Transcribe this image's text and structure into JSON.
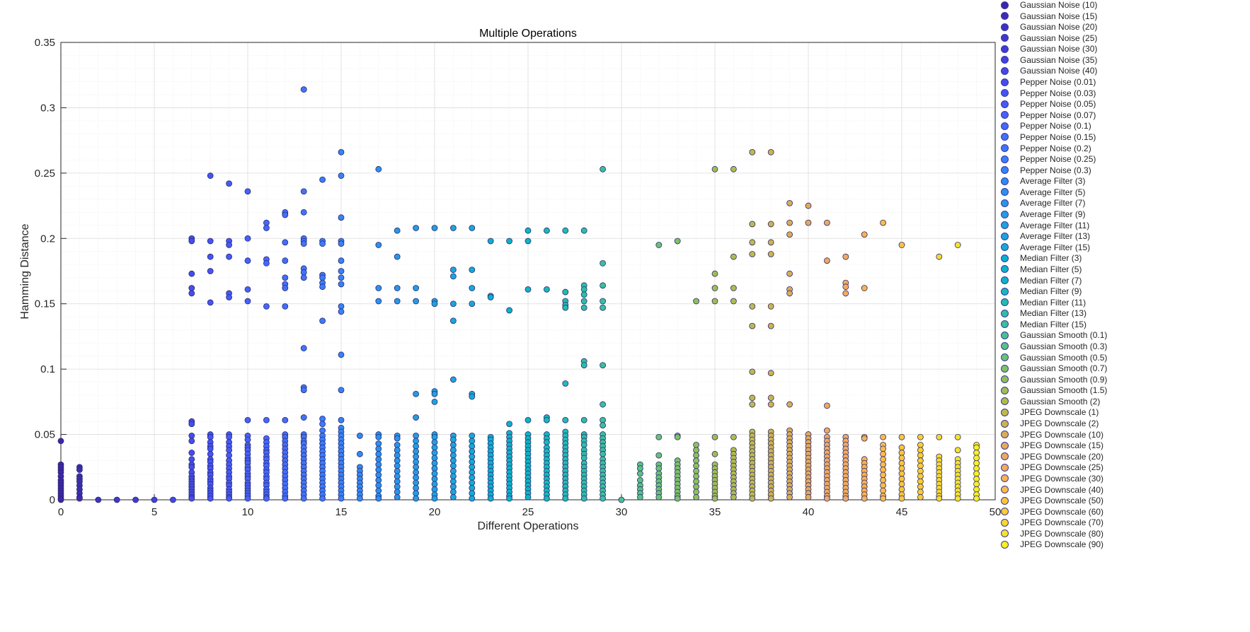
{
  "chart_data": {
    "type": "scatter",
    "title": "Multiple Operations",
    "xlabel": "Different Operations",
    "ylabel": "Hamming Distance",
    "xlim": [
      0,
      50
    ],
    "ylim": [
      0,
      0.35
    ],
    "xticks": [
      "0",
      "5",
      "10",
      "15",
      "20",
      "25",
      "30",
      "35",
      "40",
      "45",
      "50"
    ],
    "yticks": [
      "0",
      "0.05",
      "0.1",
      "0.15",
      "0.2",
      "0.25",
      "0.3",
      "0.35"
    ],
    "grid": "on",
    "legend_placement": "outside-right",
    "x_values": [
      0,
      1,
      2,
      3,
      4,
      5,
      6,
      7,
      8,
      9,
      10,
      11,
      12,
      13,
      14,
      15,
      16,
      17,
      18,
      19,
      20,
      21,
      22,
      23,
      24,
      25,
      26,
      27,
      28,
      29,
      30,
      31,
      32,
      33,
      34,
      35,
      36,
      37,
      38,
      39,
      40,
      41,
      42,
      43,
      44,
      45,
      46,
      47,
      48,
      49
    ],
    "series": [
      {
        "name": "Gaussian Noise (10)",
        "color": "#3e26a8"
      },
      {
        "name": "Gaussian Noise (15)",
        "color": "#3f2bb5"
      },
      {
        "name": "Gaussian Noise (20)",
        "color": "#4030c2"
      },
      {
        "name": "Gaussian Noise (25)",
        "color": "#4136cf"
      },
      {
        "name": "Gaussian Noise (30)",
        "color": "#423bd9"
      },
      {
        "name": "Gaussian Noise (35)",
        "color": "#4341e2"
      },
      {
        "name": "Gaussian Noise (40)",
        "color": "#4447ea"
      },
      {
        "name": "Pepper Noise (0.01)",
        "color": "#454df0"
      },
      {
        "name": "Pepper Noise (0.03)",
        "color": "#4554f5"
      },
      {
        "name": "Pepper Noise (0.05)",
        "color": "#465af9"
      },
      {
        "name": "Pepper Noise (0.07)",
        "color": "#4661fb"
      },
      {
        "name": "Pepper Noise (0.1)",
        "color": "#4567fd"
      },
      {
        "name": "Pepper Noise (0.15)",
        "color": "#436efe"
      },
      {
        "name": "Pepper Noise (0.2)",
        "color": "#3f75fe"
      },
      {
        "name": "Pepper Noise (0.25)",
        "color": "#3b7cfc"
      },
      {
        "name": "Pepper Noise (0.3)",
        "color": "#3583f8"
      },
      {
        "name": "Average Filter (3)",
        "color": "#2f8af3"
      },
      {
        "name": "Average Filter (5)",
        "color": "#2b90ee"
      },
      {
        "name": "Average Filter (7)",
        "color": "#2896e8"
      },
      {
        "name": "Average Filter (9)",
        "color": "#259be3"
      },
      {
        "name": "Average Filter (11)",
        "color": "#21a0df"
      },
      {
        "name": "Average Filter (13)",
        "color": "#1ca5db"
      },
      {
        "name": "Average Filter (15)",
        "color": "#16a9d6"
      },
      {
        "name": "Median Filter (3)",
        "color": "#0faed0"
      },
      {
        "name": "Median Filter (5)",
        "color": "#0ab2ca"
      },
      {
        "name": "Median Filter (7)",
        "color": "#0cb5c3"
      },
      {
        "name": "Median Filter (9)",
        "color": "#17b8bb"
      },
      {
        "name": "Median Filter (11)",
        "color": "#22bbb2"
      },
      {
        "name": "Median Filter (13)",
        "color": "#2ebda8"
      },
      {
        "name": "Median Filter (15)",
        "color": "#3abf9d"
      },
      {
        "name": "Gaussian Smooth (0.1)",
        "color": "#48c190"
      },
      {
        "name": "Gaussian Smooth (0.3)",
        "color": "#58c282"
      },
      {
        "name": "Gaussian Smooth (0.5)",
        "color": "#6ac274"
      },
      {
        "name": "Gaussian Smooth (0.7)",
        "color": "#7cc167"
      },
      {
        "name": "Gaussian Smooth (0.9)",
        "color": "#8fbf5c"
      },
      {
        "name": "Gaussian Smooth (1.5)",
        "color": "#a0bd54"
      },
      {
        "name": "Gaussian Smooth (2)",
        "color": "#b0bb4e"
      },
      {
        "name": "JPEG Downscale (1)",
        "color": "#bfb94e"
      },
      {
        "name": "JPEG Downscale (2)",
        "color": "#cdb24f"
      },
      {
        "name": "JPEG Downscale (10)",
        "color": "#d9ad55"
      },
      {
        "name": "JPEG Downscale (15)",
        "color": "#e2aa5f"
      },
      {
        "name": "JPEG Downscale (20)",
        "color": "#eba962"
      },
      {
        "name": "JPEG Downscale (25)",
        "color": "#f2ab5e"
      },
      {
        "name": "JPEG Downscale (30)",
        "color": "#f8b253"
      },
      {
        "name": "JPEG Downscale (40)",
        "color": "#fbbb46"
      },
      {
        "name": "JPEG Downscale (50)",
        "color": "#fbc43a"
      },
      {
        "name": "JPEG Downscale (60)",
        "color": "#f9ce33"
      },
      {
        "name": "JPEG Downscale (70)",
        "color": "#f6d82f"
      },
      {
        "name": "JPEG Downscale (80)",
        "color": "#f5e32b"
      },
      {
        "name": "JPEG Downscale (90)",
        "color": "#f8f020"
      }
    ],
    "points_by_x": {
      "0": [
        0.045,
        0.027,
        0.025,
        0.023,
        0.021,
        0.018,
        0.015,
        0.013,
        0.011,
        0.009,
        0.007,
        0.005,
        0.003,
        0.001,
        0
      ],
      "1": [
        0.025,
        0.023,
        0.018,
        0.016,
        0.014,
        0.011,
        0.008,
        0.005,
        0.002,
        0.001
      ],
      "2": [
        0
      ],
      "3": [
        0
      ],
      "4": [
        0
      ],
      "5": [
        0
      ],
      "6": [
        0
      ],
      "7": [
        0.2,
        0.198,
        0.173,
        0.162,
        0.158,
        0.06,
        0.058,
        0.049,
        0.045,
        0.036,
        0.031,
        0.027,
        0.025,
        0.021,
        0.018,
        0.016,
        0.014,
        0.012,
        0.01,
        0.008,
        0.006,
        0.004,
        0.002,
        0.001
      ],
      "8": [
        0.248,
        0.198,
        0.186,
        0.175,
        0.151,
        0.05,
        0.048,
        0.044,
        0.041,
        0.039,
        0.035,
        0.031,
        0.029,
        0.026,
        0.024,
        0.021,
        0.019,
        0.016,
        0.014,
        0.012,
        0.009,
        0.007,
        0.005,
        0.003,
        0.001
      ],
      "9": [
        0.242,
        0.198,
        0.195,
        0.186,
        0.158,
        0.155,
        0.05,
        0.048,
        0.044,
        0.041,
        0.038,
        0.034,
        0.03,
        0.027,
        0.024,
        0.021,
        0.018,
        0.016,
        0.013,
        0.011,
        0.008,
        0.006,
        0.004,
        0.002,
        0.001
      ],
      "10": [
        0.236,
        0.2,
        0.183,
        0.161,
        0.152,
        0.061,
        0.049,
        0.046,
        0.042,
        0.04,
        0.038,
        0.035,
        0.032,
        0.03,
        0.028,
        0.025,
        0.023,
        0.02,
        0.018,
        0.016,
        0.013,
        0.011,
        0.009,
        0.007,
        0.005,
        0.003,
        0.001
      ],
      "11": [
        0.212,
        0.208,
        0.184,
        0.181,
        0.148,
        0.061,
        0.047,
        0.044,
        0.041,
        0.038,
        0.036,
        0.033,
        0.031,
        0.028,
        0.026,
        0.023,
        0.021,
        0.018,
        0.016,
        0.013,
        0.011,
        0.008,
        0.006,
        0.004,
        0.002,
        0.001
      ],
      "12": [
        0.22,
        0.218,
        0.197,
        0.183,
        0.17,
        0.165,
        0.162,
        0.148,
        0.061,
        0.05,
        0.048,
        0.045,
        0.042,
        0.039,
        0.036,
        0.033,
        0.03,
        0.027,
        0.024,
        0.021,
        0.018,
        0.015,
        0.012,
        0.009,
        0.006,
        0.003,
        0.001
      ],
      "13": [
        0.314,
        0.236,
        0.22,
        0.2,
        0.198,
        0.196,
        0.177,
        0.174,
        0.17,
        0.116,
        0.086,
        0.084,
        0.063,
        0.05,
        0.048,
        0.045,
        0.043,
        0.04,
        0.037,
        0.034,
        0.031,
        0.028,
        0.025,
        0.022,
        0.019,
        0.016,
        0.013,
        0.01,
        0.007,
        0.004,
        0.001
      ],
      "14": [
        0.245,
        0.198,
        0.196,
        0.172,
        0.17,
        0.166,
        0.163,
        0.137,
        0.062,
        0.058,
        0.053,
        0.049,
        0.046,
        0.043,
        0.04,
        0.037,
        0.034,
        0.031,
        0.028,
        0.025,
        0.022,
        0.019,
        0.016,
        0.013,
        0.01,
        0.007,
        0.004,
        0.001
      ],
      "15": [
        0.266,
        0.248,
        0.216,
        0.198,
        0.196,
        0.183,
        0.175,
        0.17,
        0.165,
        0.148,
        0.144,
        0.111,
        0.084,
        0.061,
        0.055,
        0.052,
        0.049,
        0.046,
        0.043,
        0.04,
        0.037,
        0.034,
        0.031,
        0.028,
        0.025,
        0.022,
        0.019,
        0.016,
        0.013,
        0.01,
        0.007,
        0.004,
        0.001
      ],
      "16": [
        0.049,
        0.035,
        0.025,
        0.022,
        0.019,
        0.016,
        0.013,
        0.01,
        0.007,
        0.004,
        0.001
      ],
      "17": [
        0.253,
        0.195,
        0.162,
        0.152,
        0.05,
        0.048,
        0.043,
        0.039,
        0.035,
        0.031,
        0.027,
        0.023,
        0.019,
        0.015,
        0.011,
        0.007,
        0.003,
        0.001
      ],
      "18": [
        0.206,
        0.186,
        0.162,
        0.152,
        0.049,
        0.047,
        0.042,
        0.038,
        0.034,
        0.03,
        0.026,
        0.022,
        0.018,
        0.014,
        0.01,
        0.006,
        0.002
      ],
      "19": [
        0.208,
        0.162,
        0.152,
        0.081,
        0.063,
        0.049,
        0.045,
        0.041,
        0.037,
        0.033,
        0.029,
        0.025,
        0.021,
        0.017,
        0.013,
        0.009,
        0.005,
        0.001
      ],
      "20": [
        0.208,
        0.152,
        0.15,
        0.083,
        0.081,
        0.075,
        0.05,
        0.048,
        0.044,
        0.04,
        0.036,
        0.032,
        0.028,
        0.024,
        0.02,
        0.016,
        0.012,
        0.008,
        0.004,
        0.001
      ],
      "21": [
        0.208,
        0.176,
        0.171,
        0.15,
        0.137,
        0.092,
        0.049,
        0.046,
        0.042,
        0.038,
        0.034,
        0.03,
        0.026,
        0.022,
        0.018,
        0.014,
        0.01,
        0.006,
        0.002
      ],
      "22": [
        0.208,
        0.176,
        0.162,
        0.15,
        0.081,
        0.079,
        0.049,
        0.045,
        0.041,
        0.037,
        0.033,
        0.029,
        0.025,
        0.021,
        0.017,
        0.013,
        0.009,
        0.005,
        0.001
      ],
      "23": [
        0.198,
        0.156,
        0.155,
        0.048,
        0.046,
        0.043,
        0.04,
        0.037,
        0.034,
        0.031,
        0.028,
        0.025,
        0.022,
        0.019,
        0.016,
        0.013,
        0.01,
        0.007,
        0.004,
        0.001
      ],
      "24": [
        0.198,
        0.145,
        0.058,
        0.051,
        0.048,
        0.045,
        0.042,
        0.039,
        0.036,
        0.033,
        0.03,
        0.027,
        0.024,
        0.021,
        0.018,
        0.015,
        0.012,
        0.009,
        0.006,
        0.003,
        0.001
      ],
      "25": [
        0.206,
        0.198,
        0.161,
        0.061,
        0.05,
        0.047,
        0.044,
        0.041,
        0.038,
        0.035,
        0.032,
        0.029,
        0.026,
        0.023,
        0.02,
        0.017,
        0.014,
        0.011,
        0.008,
        0.005,
        0.002
      ],
      "26": [
        0.206,
        0.161,
        0.063,
        0.061,
        0.05,
        0.047,
        0.044,
        0.04,
        0.037,
        0.034,
        0.031,
        0.028,
        0.025,
        0.022,
        0.019,
        0.016,
        0.013,
        0.01,
        0.007,
        0.004,
        0.001
      ],
      "27": [
        0.206,
        0.159,
        0.152,
        0.149,
        0.147,
        0.089,
        0.061,
        0.052,
        0.049,
        0.046,
        0.043,
        0.04,
        0.037,
        0.034,
        0.031,
        0.028,
        0.025,
        0.022,
        0.019,
        0.016,
        0.013,
        0.01,
        0.007,
        0.004,
        0.001
      ],
      "28": [
        0.206,
        0.164,
        0.161,
        0.157,
        0.152,
        0.147,
        0.106,
        0.103,
        0.061,
        0.05,
        0.048,
        0.045,
        0.042,
        0.038,
        0.035,
        0.032,
        0.028,
        0.025,
        0.022,
        0.019,
        0.016,
        0.013,
        0.01,
        0.007,
        0.004,
        0.001
      ],
      "29": [
        0.253,
        0.181,
        0.164,
        0.152,
        0.147,
        0.103,
        0.073,
        0.061,
        0.057,
        0.05,
        0.047,
        0.044,
        0.041,
        0.038,
        0.035,
        0.031,
        0.028,
        0.025,
        0.022,
        0.019,
        0.016,
        0.013,
        0.01,
        0.007,
        0.004,
        0.001
      ],
      "30": [
        0
      ],
      "31": [
        0.027,
        0.024,
        0.02,
        0.015,
        0.011,
        0.008,
        0.005,
        0.002
      ],
      "32": [
        0.195,
        0.048,
        0.034,
        0.027,
        0.024,
        0.02,
        0.017,
        0.014,
        0.011,
        0.008,
        0.005,
        0.002
      ],
      "33": [
        0.198,
        0.049,
        0.048,
        0.03,
        0.027,
        0.024,
        0.021,
        0.018,
        0.015,
        0.012,
        0.009,
        0.006,
        0.003,
        0.001
      ],
      "34": [
        0.152,
        0.042,
        0.038,
        0.034,
        0.03,
        0.026,
        0.022,
        0.018,
        0.014,
        0.01,
        0.006,
        0.002
      ],
      "35": [
        0.253,
        0.173,
        0.162,
        0.152,
        0.048,
        0.035,
        0.027,
        0.024,
        0.021,
        0.018,
        0.015,
        0.012,
        0.009,
        0.006,
        0.003,
        0.001
      ],
      "36": [
        0.253,
        0.186,
        0.162,
        0.152,
        0.048,
        0.038,
        0.035,
        0.032,
        0.029,
        0.026,
        0.023,
        0.02,
        0.017,
        0.014,
        0.011,
        0.008,
        0.005,
        0.002
      ],
      "37": [
        0.266,
        0.211,
        0.197,
        0.188,
        0.148,
        0.133,
        0.098,
        0.078,
        0.073,
        0.052,
        0.049,
        0.046,
        0.043,
        0.04,
        0.037,
        0.034,
        0.031,
        0.028,
        0.025,
        0.022,
        0.019,
        0.016,
        0.013,
        0.01,
        0.007,
        0.004,
        0.001
      ],
      "38": [
        0.266,
        0.211,
        0.197,
        0.188,
        0.148,
        0.133,
        0.097,
        0.078,
        0.073,
        0.052,
        0.049,
        0.046,
        0.043,
        0.04,
        0.037,
        0.034,
        0.031,
        0.028,
        0.025,
        0.022,
        0.019,
        0.016,
        0.013,
        0.01,
        0.007,
        0.004,
        0.001
      ],
      "39": [
        0.227,
        0.212,
        0.203,
        0.173,
        0.161,
        0.158,
        0.073,
        0.053,
        0.05,
        0.047,
        0.044,
        0.041,
        0.038,
        0.035,
        0.032,
        0.029,
        0.026,
        0.023,
        0.02,
        0.017,
        0.014,
        0.011,
        0.008,
        0.005,
        0.002
      ],
      "40": [
        0.225,
        0.212,
        0.05,
        0.047,
        0.044,
        0.041,
        0.038,
        0.035,
        0.032,
        0.029,
        0.026,
        0.023,
        0.02,
        0.017,
        0.014,
        0.011,
        0.008,
        0.005,
        0.002
      ],
      "41": [
        0.212,
        0.183,
        0.072,
        0.053,
        0.048,
        0.045,
        0.042,
        0.039,
        0.036,
        0.033,
        0.03,
        0.027,
        0.024,
        0.021,
        0.018,
        0.015,
        0.012,
        0.009,
        0.006,
        0.003,
        0.001
      ],
      "42": [
        0.186,
        0.166,
        0.163,
        0.158,
        0.048,
        0.045,
        0.042,
        0.039,
        0.036,
        0.033,
        0.03,
        0.027,
        0.024,
        0.021,
        0.018,
        0.015,
        0.012,
        0.009,
        0.006,
        0.003,
        0.001
      ],
      "43": [
        0.203,
        0.162,
        0.048,
        0.047,
        0.031,
        0.028,
        0.025,
        0.022,
        0.019,
        0.016,
        0.013,
        0.01,
        0.007,
        0.004,
        0.001
      ],
      "44": [
        0.212,
        0.048,
        0.042,
        0.039,
        0.035,
        0.031,
        0.027,
        0.023,
        0.019,
        0.015,
        0.011,
        0.007,
        0.003,
        0.001
      ],
      "45": [
        0.195,
        0.048,
        0.04,
        0.036,
        0.032,
        0.028,
        0.024,
        0.02,
        0.016,
        0.012,
        0.008,
        0.004,
        0.001
      ],
      "46": [
        0.048,
        0.042,
        0.038,
        0.034,
        0.03,
        0.026,
        0.022,
        0.018,
        0.014,
        0.01,
        0.006,
        0.002
      ],
      "47": [
        0.186,
        0.048,
        0.033,
        0.03,
        0.027,
        0.024,
        0.021,
        0.018,
        0.015,
        0.012,
        0.009,
        0.006,
        0.003,
        0.001
      ],
      "48": [
        0.195,
        0.048,
        0.038,
        0.031,
        0.028,
        0.025,
        0.022,
        0.019,
        0.016,
        0.013,
        0.01,
        0.007,
        0.004,
        0.001
      ],
      "49": [
        0.042,
        0.04,
        0.036,
        0.032,
        0.028,
        0.024,
        0.02,
        0.016,
        0.012,
        0.008,
        0.004,
        0.001
      ]
    }
  }
}
